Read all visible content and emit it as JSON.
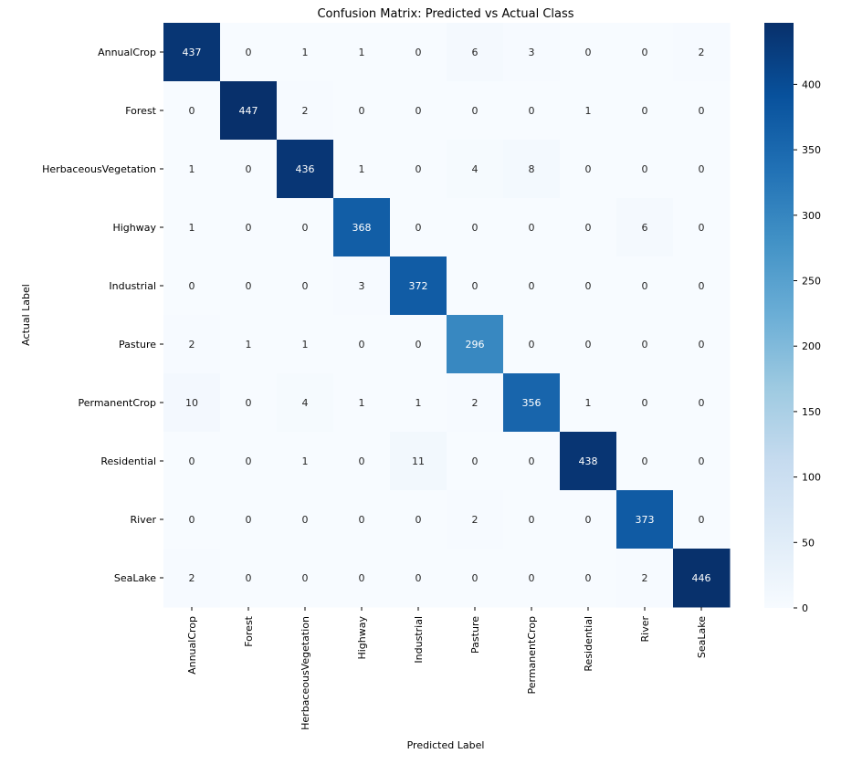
{
  "chart_data": {
    "type": "heatmap",
    "title": "Confusion Matrix: Predicted vs Actual Class",
    "xlabel": "Predicted Label",
    "ylabel": "Actual Label",
    "x_categories": [
      "AnnualCrop",
      "Forest",
      "HerbaceousVegetation",
      "Highway",
      "Industrial",
      "Pasture",
      "PermanentCrop",
      "Residential",
      "River",
      "SeaLake"
    ],
    "y_categories": [
      "AnnualCrop",
      "Forest",
      "HerbaceousVegetation",
      "Highway",
      "Industrial",
      "Pasture",
      "PermanentCrop",
      "Residential",
      "River",
      "SeaLake"
    ],
    "values": [
      [
        437,
        0,
        1,
        1,
        0,
        6,
        3,
        0,
        0,
        2
      ],
      [
        0,
        447,
        2,
        0,
        0,
        0,
        0,
        1,
        0,
        0
      ],
      [
        1,
        0,
        436,
        1,
        0,
        4,
        8,
        0,
        0,
        0
      ],
      [
        1,
        0,
        0,
        368,
        0,
        0,
        0,
        0,
        6,
        0
      ],
      [
        0,
        0,
        0,
        3,
        372,
        0,
        0,
        0,
        0,
        0
      ],
      [
        2,
        1,
        1,
        0,
        0,
        296,
        0,
        0,
        0,
        0
      ],
      [
        10,
        0,
        4,
        1,
        1,
        2,
        356,
        1,
        0,
        0
      ],
      [
        0,
        0,
        1,
        0,
        11,
        0,
        0,
        438,
        0,
        0
      ],
      [
        0,
        0,
        0,
        0,
        0,
        2,
        0,
        0,
        373,
        0
      ],
      [
        2,
        0,
        0,
        0,
        0,
        0,
        0,
        0,
        2,
        446
      ]
    ],
    "colormap": "Blues",
    "colorbar": {
      "range": [
        0,
        447
      ],
      "ticks": [
        0,
        50,
        100,
        150,
        200,
        250,
        300,
        350,
        400
      ]
    },
    "grid": false,
    "legend": "colorbar-right"
  }
}
